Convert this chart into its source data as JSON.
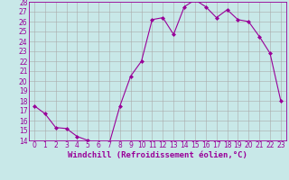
{
  "x": [
    0,
    1,
    2,
    3,
    4,
    5,
    6,
    7,
    8,
    9,
    10,
    11,
    12,
    13,
    14,
    15,
    16,
    17,
    18,
    19,
    20,
    21,
    22,
    23
  ],
  "y": [
    17.5,
    16.7,
    15.3,
    15.2,
    14.4,
    14.0,
    13.8,
    13.7,
    17.5,
    20.5,
    22.0,
    26.2,
    26.4,
    24.7,
    27.5,
    28.2,
    27.5,
    26.4,
    27.2,
    26.2,
    26.0,
    24.5,
    22.8,
    18.0
  ],
  "line_color": "#990099",
  "marker": "D",
  "marker_size": 2,
  "bg_color": "#c8e8e8",
  "grid_color": "#aaaaaa",
  "xlabel": "Windchill (Refroidissement éolien,°C)",
  "ylabel": "",
  "xlim": [
    -0.5,
    23.5
  ],
  "ylim": [
    14,
    28
  ],
  "yticks": [
    14,
    15,
    16,
    17,
    18,
    19,
    20,
    21,
    22,
    23,
    24,
    25,
    26,
    27,
    28
  ],
  "xticks": [
    0,
    1,
    2,
    3,
    4,
    5,
    6,
    7,
    8,
    9,
    10,
    11,
    12,
    13,
    14,
    15,
    16,
    17,
    18,
    19,
    20,
    21,
    22,
    23
  ],
  "tick_fontsize": 5.5,
  "xlabel_fontsize": 6.5
}
